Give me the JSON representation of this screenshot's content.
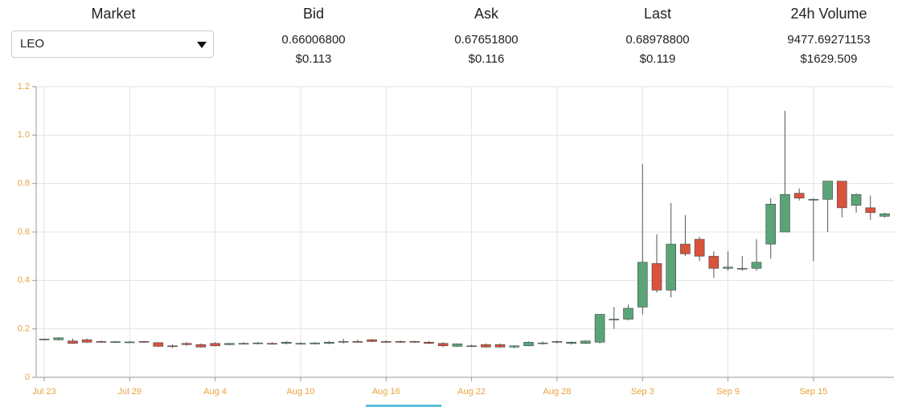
{
  "header": {
    "market": {
      "label": "Market",
      "selected": "LEO"
    },
    "columns": [
      {
        "label": "Bid",
        "price": "0.66006800",
        "usd": "$0.113"
      },
      {
        "label": "Ask",
        "price": "0.67651800",
        "usd": "$0.116"
      },
      {
        "label": "Last",
        "price": "0.68978800",
        "usd": "$0.119"
      },
      {
        "label": "24h Volume",
        "price": "9477.69271153",
        "usd": "$1629.509"
      }
    ]
  },
  "chart_data": {
    "type": "candlestick",
    "categories": [
      "Jul 23",
      null,
      null,
      null,
      null,
      null,
      "Jul 29",
      null,
      null,
      null,
      null,
      null,
      "Aug 4",
      null,
      null,
      null,
      null,
      null,
      "Aug 10",
      null,
      null,
      null,
      null,
      null,
      "Aug 16",
      null,
      null,
      null,
      null,
      null,
      "Aug 22",
      null,
      null,
      null,
      null,
      null,
      "Aug 28",
      null,
      null,
      null,
      null,
      null,
      "Sep 3",
      null,
      null,
      null,
      null,
      null,
      "Sep 9",
      null,
      null,
      null,
      null,
      null,
      "Sep 15",
      null,
      null,
      null,
      null,
      null
    ],
    "open": [
      0.155,
      0.155,
      0.15,
      0.155,
      0.148,
      0.146,
      0.146,
      0.148,
      0.143,
      0.13,
      0.14,
      0.135,
      0.14,
      0.135,
      0.14,
      0.14,
      0.14,
      0.14,
      0.14,
      0.138,
      0.14,
      0.145,
      0.148,
      0.155,
      0.148,
      0.148,
      0.148,
      0.145,
      0.14,
      0.128,
      0.13,
      0.135,
      0.135,
      0.125,
      0.13,
      0.14,
      0.145,
      0.14,
      0.14,
      0.145,
      0.24,
      0.24,
      0.29,
      0.47,
      0.36,
      0.55,
      0.57,
      0.5,
      0.45,
      0.45,
      0.45,
      0.55,
      0.6,
      0.76,
      0.735,
      0.735,
      0.81,
      0.71,
      0.7,
      0.665
    ],
    "high": [
      0.16,
      0.165,
      0.16,
      0.16,
      0.152,
      0.15,
      0.15,
      0.15,
      0.145,
      0.135,
      0.145,
      0.14,
      0.145,
      0.142,
      0.145,
      0.145,
      0.145,
      0.15,
      0.145,
      0.145,
      0.15,
      0.16,
      0.155,
      0.158,
      0.152,
      0.152,
      0.152,
      0.15,
      0.145,
      0.14,
      0.135,
      0.14,
      0.14,
      0.132,
      0.148,
      0.148,
      0.152,
      0.148,
      0.152,
      0.26,
      0.29,
      0.3,
      0.88,
      0.59,
      0.72,
      0.67,
      0.58,
      0.52,
      0.52,
      0.5,
      0.57,
      0.74,
      1.1,
      0.78,
      0.74,
      0.81,
      0.81,
      0.76,
      0.75,
      0.68
    ],
    "low": [
      0.152,
      0.152,
      0.138,
      0.142,
      0.142,
      0.142,
      0.142,
      0.142,
      0.125,
      0.12,
      0.13,
      0.122,
      0.128,
      0.132,
      0.136,
      0.136,
      0.135,
      0.136,
      0.136,
      0.135,
      0.137,
      0.14,
      0.142,
      0.145,
      0.142,
      0.142,
      0.142,
      0.137,
      0.125,
      0.125,
      0.125,
      0.122,
      0.122,
      0.12,
      0.128,
      0.135,
      0.14,
      0.135,
      0.138,
      0.14,
      0.2,
      0.235,
      0.26,
      0.35,
      0.33,
      0.5,
      0.48,
      0.41,
      0.44,
      0.44,
      0.44,
      0.49,
      0.6,
      0.73,
      0.48,
      0.6,
      0.66,
      0.68,
      0.65,
      0.66
    ],
    "close": [
      0.158,
      0.163,
      0.14,
      0.145,
      0.145,
      0.147,
      0.146,
      0.145,
      0.128,
      0.128,
      0.135,
      0.125,
      0.13,
      0.14,
      0.14,
      0.142,
      0.138,
      0.145,
      0.14,
      0.142,
      0.145,
      0.148,
      0.145,
      0.148,
      0.145,
      0.145,
      0.145,
      0.14,
      0.13,
      0.138,
      0.13,
      0.125,
      0.125,
      0.13,
      0.145,
      0.142,
      0.148,
      0.145,
      0.15,
      0.26,
      0.24,
      0.285,
      0.475,
      0.36,
      0.55,
      0.51,
      0.5,
      0.45,
      0.455,
      0.45,
      0.475,
      0.715,
      0.755,
      0.74,
      0.735,
      0.81,
      0.7,
      0.755,
      0.68,
      0.675
    ],
    "up_color": "#5aa478",
    "down_color": "#d9533c",
    "ylim": [
      0,
      1.2
    ],
    "yticks": [
      0,
      0.2,
      0.4,
      0.6,
      0.8,
      {
        "value": 1,
        "label": "1.0"
      },
      1.2
    ],
    "grid": true
  }
}
